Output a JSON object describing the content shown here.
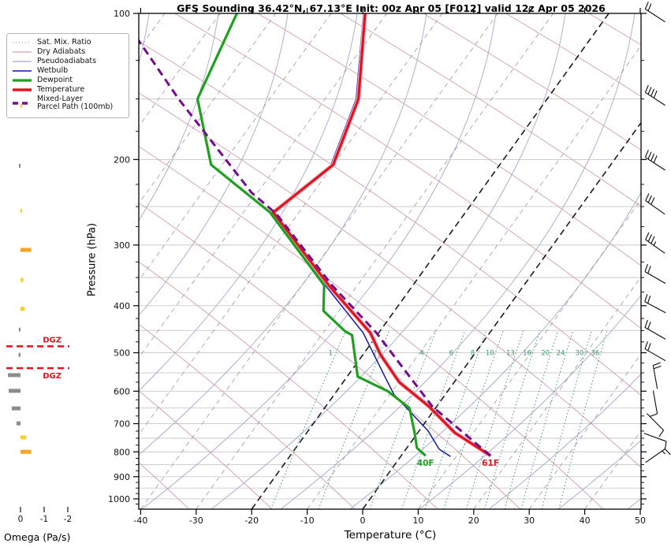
{
  "header": {
    "title": "GFS Sounding 36.42°N, 67.13°E Init: 00z Apr 05 [F012] valid 12z Apr 05 2026"
  },
  "legend": {
    "items": [
      {
        "id": "sat-mix-ratio",
        "label": "Sat. Mix. Ratio",
        "color": "#8a8a8a",
        "dash": "1 3",
        "width": 1
      },
      {
        "id": "dry-adiabats",
        "label": "Dry Adiabats",
        "color": "#d4a0a8",
        "dash": "",
        "width": 1.2
      },
      {
        "id": "pseudoadiabats",
        "label": "Pseudoadiabats",
        "color": "#a2a8d2",
        "dash": "",
        "width": 1.2
      },
      {
        "id": "wetbulb",
        "label": "Wetbulb",
        "color": "#1414aa",
        "dash": "",
        "width": 1.6
      },
      {
        "id": "dewpoint",
        "label": "Dewpoint",
        "color": "#20a020",
        "dash": "",
        "width": 3.2
      },
      {
        "id": "temperature",
        "label": "Temperature",
        "color": "#e1141e",
        "dash": "",
        "width": 3.6
      },
      {
        "id": "parcel-path",
        "label": "Mixed-Layer\nParcel Path (100mb)",
        "color": "#760d8e",
        "dash": "7 5",
        "width": 3.6
      }
    ]
  },
  "axes": {
    "pressure": {
      "label": "Pressure (hPa)",
      "ticks": [
        100,
        200,
        300,
        400,
        500,
        600,
        700,
        800,
        900,
        1000
      ],
      "minor_ticks": [
        125,
        150,
        175,
        225,
        250,
        275,
        325,
        350,
        375,
        425,
        450,
        475,
        525,
        550,
        575,
        625,
        650,
        675,
        725,
        750,
        775,
        825,
        850,
        875,
        925,
        950,
        975,
        1025
      ],
      "range": [
        100,
        1050
      ],
      "scale": "log"
    },
    "temperature": {
      "label": "Temperature (°C)",
      "ticks": [
        -40,
        -30,
        -20,
        -10,
        0,
        10,
        20,
        30,
        40,
        50
      ],
      "range": [
        -40,
        50
      ]
    },
    "omega": {
      "label": "Omega (Pa/s)",
      "ticks": [
        0,
        -1,
        -2
      ]
    }
  },
  "chart_data": {
    "type": "skewt_log_p_sounding",
    "pressure_range": [
      100,
      1050
    ],
    "temperature_range": [
      -40,
      50
    ],
    "grid_hpa_step": 50,
    "profiles": {
      "temperature": [
        [
          100,
          -63.9
        ],
        [
          150,
          -54.0
        ],
        [
          205,
          -50.0
        ],
        [
          257,
          -54.6
        ],
        [
          363,
          -35.2
        ],
        [
          455,
          -21.5
        ],
        [
          505,
          -16.8
        ],
        [
          575,
          -9.9
        ],
        [
          645,
          -1.4
        ],
        [
          730,
          6.6
        ],
        [
          815,
          16.1
        ]
      ],
      "dewpoint": [
        [
          100,
          -87.0
        ],
        [
          150,
          -83.0
        ],
        [
          205,
          -72.0
        ],
        [
          257,
          -55.2
        ],
        [
          363,
          -36.0
        ],
        [
          410,
          -32.8
        ],
        [
          452,
          -26.2
        ],
        [
          460,
          -24.5
        ],
        [
          560,
          -18.1
        ],
        [
          600,
          -10.8
        ],
        [
          650,
          -4.7
        ],
        [
          730,
          -0.6
        ],
        [
          785,
          1.8
        ],
        [
          815,
          4.4
        ]
      ],
      "wetbulb": [
        [
          100,
          -64.2
        ],
        [
          150,
          -54.4
        ],
        [
          205,
          -50.4
        ],
        [
          257,
          -55.0
        ],
        [
          363,
          -35.8
        ],
        [
          455,
          -22.8
        ],
        [
          560,
          -13.2
        ],
        [
          610,
          -9.2
        ],
        [
          724,
          1.6
        ],
        [
          790,
          6.0
        ],
        [
          818,
          9.0
        ]
      ],
      "parcel_path": [
        [
          815,
          16.1
        ],
        [
          645,
          -0.8
        ],
        [
          455,
          -20.4
        ],
        [
          363,
          -34.6
        ],
        [
          259,
          -53.8
        ],
        [
          234,
          -61.1
        ],
        [
          150,
          -86.4
        ],
        [
          112,
          -102.0
        ]
      ]
    },
    "surface_labels": [
      {
        "text": "40F",
        "series": "dewpoint",
        "color": "#20a020"
      },
      {
        "text": "61F",
        "series": "temperature",
        "color": "#e1141e"
      }
    ],
    "mixing_ratio_lines": {
      "values_g_kg": [
        1,
        2,
        4,
        6,
        8,
        10,
        13,
        16,
        20,
        24,
        30,
        36
      ],
      "label_pressure": 500,
      "top_pressure": 450,
      "color": "#3f9b68"
    },
    "isotherms": {
      "start": -120,
      "end": 40,
      "step": 10,
      "highlighted": [
        0,
        -20
      ],
      "color": "#9a9a9a",
      "highlight_color": "#1c1c1c"
    },
    "dry_adiabats": {
      "approx_step_c": 15,
      "color": "#d4a0a8"
    },
    "pseudoadiabats": {
      "approx_step_c": 12,
      "color": "#a2a8d2"
    },
    "dgz_layers": [
      {
        "label": "DGZ",
        "pressure": 485,
        "label_side": "above"
      },
      {
        "label": "DGZ",
        "pressure": 538,
        "label_side": "below"
      }
    ],
    "dgz_color": "#e8111d",
    "omega_bars": [
      {
        "pressure": 155,
        "value": -0.07,
        "color": "#f5cf3a"
      },
      {
        "pressure": 206,
        "value": 0.07,
        "color": "#8c8c8c"
      },
      {
        "pressure": 255,
        "value": -0.07,
        "color": "#f5cf3a"
      },
      {
        "pressure": 307,
        "value": -0.45,
        "color": "#f5a62a"
      },
      {
        "pressure": 354,
        "value": -0.12,
        "color": "#f5cf3a"
      },
      {
        "pressure": 406,
        "value": -0.18,
        "color": "#f5cf3a"
      },
      {
        "pressure": 448,
        "value": 0.07,
        "color": "#8c8c8c"
      },
      {
        "pressure": 505,
        "value": 0.08,
        "color": "#8c8c8c"
      },
      {
        "pressure": 556,
        "value": 0.53,
        "color": "#8c8c8c"
      },
      {
        "pressure": 599,
        "value": 0.5,
        "color": "#8c8c8c"
      },
      {
        "pressure": 651,
        "value": 0.37,
        "color": "#8c8c8c"
      },
      {
        "pressure": 699,
        "value": 0.17,
        "color": "#8c8c8c"
      },
      {
        "pressure": 747,
        "value": -0.25,
        "color": "#f5cf3a"
      },
      {
        "pressure": 800,
        "value": -0.45,
        "color": "#f5a62a"
      }
    ],
    "wind_barbs": [
      {
        "pressure": 101,
        "angle": 33,
        "full": 2,
        "half": 0
      },
      {
        "pressure": 150,
        "angle": 33,
        "full": 4,
        "half": 0
      },
      {
        "pressure": 204,
        "angle": 33,
        "full": 4,
        "half": 0
      },
      {
        "pressure": 251,
        "angle": 35,
        "full": 3,
        "half": 0
      },
      {
        "pressure": 302,
        "angle": 35,
        "full": 3,
        "half": 1
      },
      {
        "pressure": 350,
        "angle": 30,
        "full": 2,
        "half": 0
      },
      {
        "pressure": 403,
        "angle": 28,
        "full": 2,
        "half": 0
      },
      {
        "pressure": 456,
        "angle": 30,
        "full": 2,
        "half": 0
      },
      {
        "pressure": 505,
        "angle": 30,
        "full": 2,
        "half": 0
      },
      {
        "pressure": 561,
        "angle": 80,
        "full": 2,
        "half": 0
      },
      {
        "pressure": 632,
        "angle": 260,
        "full": 1,
        "half": 0
      },
      {
        "pressure": 694,
        "angle": 225,
        "full": 1,
        "half": 0
      },
      {
        "pressure": 747,
        "angle": 200,
        "full": 1,
        "half": 0
      },
      {
        "pressure": 815,
        "angle": 145,
        "full": 1,
        "half": 1
      }
    ],
    "colors": {
      "grid": "#c9c9c9",
      "axis": "#000000",
      "barbs": "#0a0a0a",
      "temperature_halo": "#f2b8c6"
    }
  }
}
